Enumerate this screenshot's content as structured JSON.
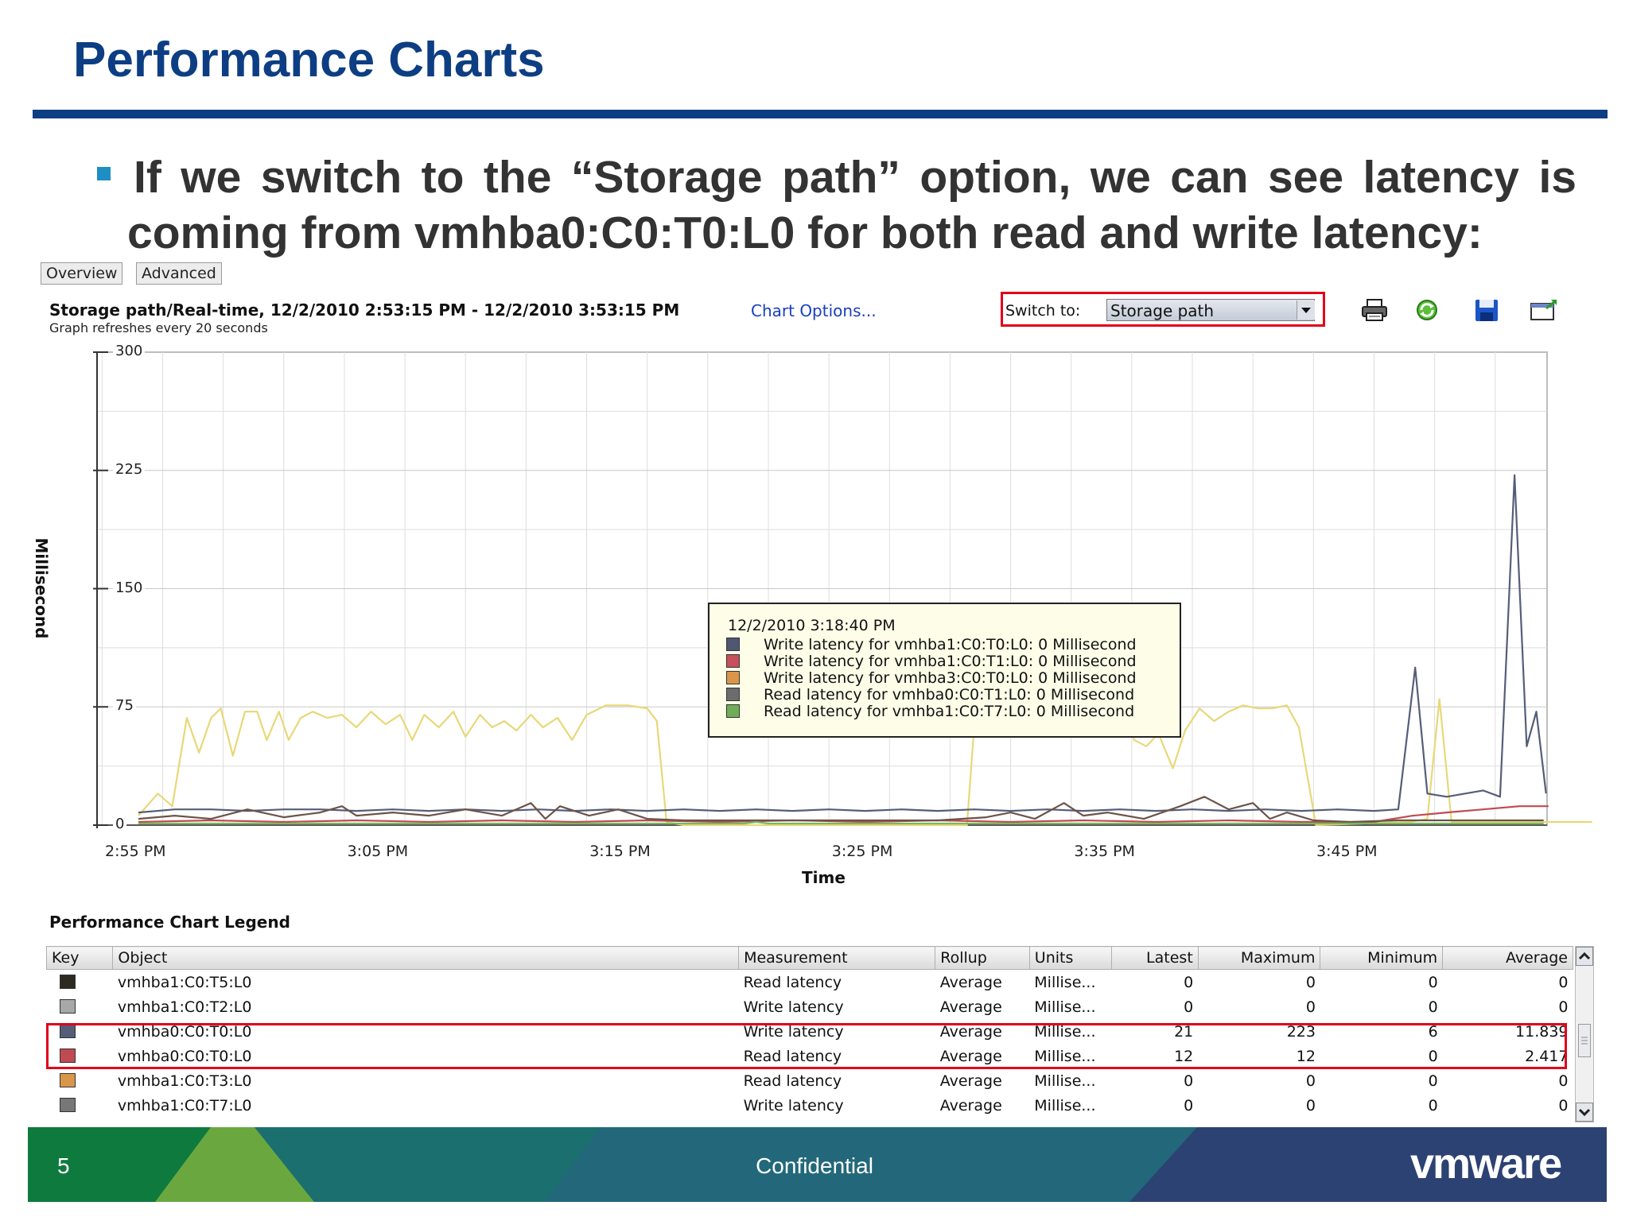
{
  "slide": {
    "title": "Performance Charts",
    "bullet": {
      "line1": "If we switch to the “Storage path” option, we can see latency is",
      "line2": "coming from vmhba0:C0:T0:L0 for both read and write latency:"
    },
    "page_number": "5",
    "footer_text": "Confidential",
    "brand": "vmware"
  },
  "tabs": [
    "Overview",
    "Advanced"
  ],
  "chart_header": {
    "title": "Storage path/Real-time, 12/2/2010 2:53:15 PM - 12/2/2010 3:53:15 PM",
    "options_link": "Chart Options...",
    "refresh_note": "Graph refreshes every 20 seconds",
    "switch_label": "Switch to:",
    "switch_value": "Storage path"
  },
  "toolbar": {
    "icons": [
      "printer-icon",
      "refresh-icon",
      "save-icon",
      "export-icon"
    ]
  },
  "chart_data": {
    "type": "line",
    "ylabel": "Millisecond",
    "xlabel": "Time",
    "ylim": [
      0,
      300
    ],
    "yticks": [
      0,
      75,
      150,
      225,
      300
    ],
    "xticks": [
      "2:55 PM",
      "3:05 PM",
      "3:15 PM",
      "3:25 PM",
      "3:35 PM",
      "3:45 PM"
    ],
    "xlim_minutes_from_255": [
      0,
      60
    ],
    "grid": true,
    "series": [
      {
        "color": "#e8d878",
        "points": [
          [
            0,
            6
          ],
          [
            0.8,
            20
          ],
          [
            1.4,
            12
          ],
          [
            2,
            68
          ],
          [
            2.5,
            46
          ],
          [
            3,
            68
          ],
          [
            3.4,
            74
          ],
          [
            3.9,
            44
          ],
          [
            4.4,
            72
          ],
          [
            4.9,
            72
          ],
          [
            5.3,
            54
          ],
          [
            5.8,
            72
          ],
          [
            6.2,
            54
          ],
          [
            6.7,
            68
          ],
          [
            7.2,
            72
          ],
          [
            7.8,
            68
          ],
          [
            8.4,
            70
          ],
          [
            9,
            62
          ],
          [
            9.6,
            72
          ],
          [
            10.2,
            64
          ],
          [
            10.8,
            70
          ],
          [
            11.3,
            54
          ],
          [
            11.8,
            70
          ],
          [
            12.4,
            62
          ],
          [
            13,
            72
          ],
          [
            13.5,
            56
          ],
          [
            14.1,
            70
          ],
          [
            14.6,
            62
          ],
          [
            15.1,
            66
          ],
          [
            15.6,
            60
          ],
          [
            16.2,
            70
          ],
          [
            16.7,
            62
          ],
          [
            17.3,
            68
          ],
          [
            17.9,
            54
          ],
          [
            18.5,
            70
          ],
          [
            19.3,
            76
          ],
          [
            20.2,
            76
          ],
          [
            21,
            74
          ],
          [
            21.4,
            66
          ],
          [
            21.8,
            2
          ],
          [
            22.5,
            0
          ],
          [
            34.2,
            0
          ],
          [
            34.6,
            84
          ],
          [
            35.3,
            78
          ],
          [
            35.9,
            56
          ],
          [
            36.4,
            62
          ],
          [
            37.1,
            78
          ],
          [
            37.6,
            64
          ],
          [
            38.3,
            74
          ],
          [
            39,
            82
          ],
          [
            39.6,
            78
          ],
          [
            40.2,
            72
          ],
          [
            40.7,
            66
          ],
          [
            41.1,
            54
          ],
          [
            41.6,
            50
          ],
          [
            42.1,
            58
          ],
          [
            42.7,
            36
          ],
          [
            43.2,
            60
          ],
          [
            43.8,
            74
          ],
          [
            44.4,
            66
          ],
          [
            45,
            72
          ],
          [
            45.6,
            76
          ],
          [
            46.2,
            74
          ],
          [
            46.8,
            74
          ],
          [
            47.4,
            76
          ],
          [
            47.9,
            62
          ],
          [
            48.6,
            0
          ],
          [
            50.5,
            1
          ],
          [
            52.5,
            2
          ],
          [
            53.2,
            4
          ],
          [
            53.7,
            80
          ],
          [
            54.2,
            2
          ],
          [
            55,
            2
          ],
          [
            56,
            2
          ],
          [
            58,
            2
          ],
          [
            60,
            2
          ]
        ]
      },
      {
        "color": "#555d78",
        "points": [
          [
            0,
            8
          ],
          [
            1.5,
            10
          ],
          [
            3,
            10
          ],
          [
            4.5,
            9
          ],
          [
            6,
            10
          ],
          [
            7.5,
            10
          ],
          [
            9,
            9
          ],
          [
            10.5,
            10
          ],
          [
            12,
            9
          ],
          [
            13.5,
            10
          ],
          [
            15,
            9
          ],
          [
            16.5,
            10
          ],
          [
            18,
            9
          ],
          [
            19.5,
            10
          ],
          [
            21,
            9
          ],
          [
            22.5,
            10
          ],
          [
            24,
            9
          ],
          [
            25.5,
            10
          ],
          [
            27,
            9
          ],
          [
            28.5,
            10
          ],
          [
            30,
            9
          ],
          [
            31.5,
            10
          ],
          [
            33,
            9
          ],
          [
            34.5,
            10
          ],
          [
            36,
            9
          ],
          [
            37.5,
            10
          ],
          [
            39,
            9
          ],
          [
            40.5,
            10
          ],
          [
            42,
            9
          ],
          [
            43.5,
            10
          ],
          [
            45,
            9
          ],
          [
            46.5,
            10
          ],
          [
            48,
            9
          ],
          [
            49.5,
            10
          ],
          [
            51,
            9
          ],
          [
            52,
            10
          ],
          [
            52.7,
            100
          ],
          [
            53.2,
            20
          ],
          [
            54,
            18
          ],
          [
            55.5,
            22
          ],
          [
            56.2,
            18
          ],
          [
            56.8,
            222
          ],
          [
            57.3,
            50
          ],
          [
            57.7,
            72
          ],
          [
            58.1,
            20
          ]
        ]
      },
      {
        "color": "#c04a52",
        "points": [
          [
            0,
            2
          ],
          [
            3,
            3
          ],
          [
            6,
            2
          ],
          [
            9,
            3
          ],
          [
            12,
            2
          ],
          [
            15,
            3
          ],
          [
            18,
            2
          ],
          [
            21,
            3
          ],
          [
            24,
            2
          ],
          [
            27,
            3
          ],
          [
            30,
            2
          ],
          [
            33,
            3
          ],
          [
            36,
            2
          ],
          [
            39,
            3
          ],
          [
            42,
            2
          ],
          [
            45,
            3
          ],
          [
            48,
            2
          ],
          [
            51,
            2
          ],
          [
            52.6,
            6
          ],
          [
            54,
            8
          ],
          [
            55.5,
            10
          ],
          [
            57,
            12
          ],
          [
            58.2,
            12
          ]
        ]
      },
      {
        "color": "#6b5448",
        "points": [
          [
            0,
            4
          ],
          [
            1.5,
            6
          ],
          [
            3,
            4
          ],
          [
            4.5,
            10
          ],
          [
            6,
            5
          ],
          [
            7.5,
            8
          ],
          [
            8.4,
            12
          ],
          [
            9,
            6
          ],
          [
            10.5,
            8
          ],
          [
            12,
            6
          ],
          [
            13.5,
            10
          ],
          [
            15,
            6
          ],
          [
            16.2,
            14
          ],
          [
            16.8,
            4
          ],
          [
            17.4,
            12
          ],
          [
            18.6,
            6
          ],
          [
            19.8,
            10
          ],
          [
            21,
            4
          ],
          [
            22.5,
            3
          ],
          [
            24,
            3
          ],
          [
            27,
            3
          ],
          [
            30,
            3
          ],
          [
            33,
            3
          ],
          [
            35,
            5
          ],
          [
            36,
            8
          ],
          [
            37,
            4
          ],
          [
            38.2,
            14
          ],
          [
            39,
            6
          ],
          [
            40,
            8
          ],
          [
            41.5,
            4
          ],
          [
            43,
            12
          ],
          [
            44,
            18
          ],
          [
            45,
            10
          ],
          [
            46,
            14
          ],
          [
            46.7,
            4
          ],
          [
            47.4,
            8
          ],
          [
            48.5,
            3
          ],
          [
            50,
            2
          ],
          [
            52,
            3
          ],
          [
            55,
            3
          ],
          [
            58,
            3
          ]
        ]
      },
      {
        "color": "#78b860",
        "points": [
          [
            0,
            1
          ],
          [
            10,
            1
          ],
          [
            20,
            1
          ],
          [
            25,
            1
          ],
          [
            25.5,
            2
          ],
          [
            26,
            1
          ],
          [
            35,
            1
          ],
          [
            45,
            1
          ],
          [
            58,
            1
          ]
        ]
      }
    ]
  },
  "tooltip": {
    "time": "12/2/2010 3:18:40 PM",
    "rows": [
      {
        "color": "#4f5772",
        "text": "Write latency for vmhba1:C0:T0:L0: 0 Millisecond"
      },
      {
        "color": "#c8505a",
        "text": "Write latency for vmhba1:C0:T1:L0: 0 Millisecond"
      },
      {
        "color": "#d9964a",
        "text": "Write latency for vmhba3:C0:T0:L0: 0 Millisecond"
      },
      {
        "color": "#6c6c6c",
        "text": "Read latency for vmhba0:C0:T1:L0: 0 Millisecond"
      },
      {
        "color": "#6fae57",
        "text": "Read latency for vmhba1:C0:T7:L0: 0 Millisecond"
      }
    ]
  },
  "legend": {
    "title": "Performance Chart Legend",
    "columns": [
      "Key",
      "Object",
      "Measurement",
      "Rollup",
      "Units",
      "Latest",
      "Maximum",
      "Minimum",
      "Average"
    ],
    "rows": [
      {
        "color": "#2e2a22",
        "object": "vmhba1:C0:T5:L0",
        "measurement": "Read latency",
        "rollup": "Average",
        "units": "Millise...",
        "latest": "0",
        "maximum": "0",
        "minimum": "0",
        "average": "0"
      },
      {
        "color": "#a8a8a8",
        "object": "vmhba1:C0:T2:L0",
        "measurement": "Write latency",
        "rollup": "Average",
        "units": "Millise...",
        "latest": "0",
        "maximum": "0",
        "minimum": "0",
        "average": "0"
      },
      {
        "color": "#555d78",
        "object": "vmhba0:C0:T0:L0",
        "measurement": "Write latency",
        "rollup": "Average",
        "units": "Millise...",
        "latest": "21",
        "maximum": "223",
        "minimum": "6",
        "average": "11.839"
      },
      {
        "color": "#c04a52",
        "object": "vmhba0:C0:T0:L0",
        "measurement": "Read latency",
        "rollup": "Average",
        "units": "Millise...",
        "latest": "12",
        "maximum": "12",
        "minimum": "0",
        "average": "2.417"
      },
      {
        "color": "#d9964a",
        "object": "vmhba1:C0:T3:L0",
        "measurement": "Read latency",
        "rollup": "Average",
        "units": "Millise...",
        "latest": "0",
        "maximum": "0",
        "minimum": "0",
        "average": "0"
      },
      {
        "color": "#777777",
        "object": "vmhba1:C0:T7:L0",
        "measurement": "Write latency",
        "rollup": "Average",
        "units": "Millise...",
        "latest": "0",
        "maximum": "0",
        "minimum": "0",
        "average": "0"
      }
    ]
  }
}
